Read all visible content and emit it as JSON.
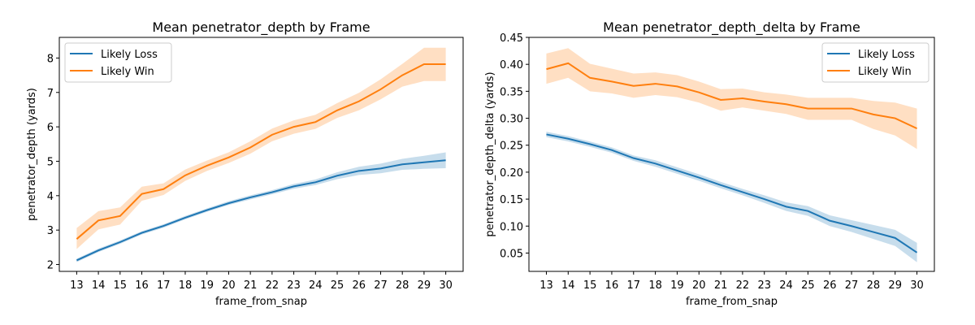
{
  "colors": {
    "loss": "#1f77b4",
    "win": "#ff7f0e"
  },
  "chart_data": [
    {
      "type": "line",
      "title": "Mean penetrator_depth by Frame",
      "xlabel": "frame_from_snap",
      "ylabel": "penetrator_depth (yards)",
      "x": [
        13,
        14,
        15,
        16,
        17,
        18,
        19,
        20,
        21,
        22,
        23,
        24,
        25,
        26,
        27,
        28,
        29,
        30
      ],
      "xlim": [
        12.2,
        30.8
      ],
      "ylim": [
        1.8,
        8.6
      ],
      "yticks": [
        2,
        3,
        4,
        5,
        6,
        7,
        8
      ],
      "legend_position": "upper-left",
      "series": [
        {
          "name": "Likely Loss",
          "color_key": "loss",
          "values": [
            2.12,
            2.41,
            2.65,
            2.92,
            3.12,
            3.36,
            3.58,
            3.78,
            3.95,
            4.1,
            4.27,
            4.39,
            4.58,
            4.72,
            4.79,
            4.91,
            4.97,
            5.03
          ],
          "lower": [
            2.07,
            2.36,
            2.6,
            2.87,
            3.07,
            3.31,
            3.53,
            3.73,
            3.89,
            4.04,
            4.2,
            4.31,
            4.48,
            4.6,
            4.65,
            4.75,
            4.78,
            4.8
          ],
          "upper": [
            2.17,
            2.46,
            2.7,
            2.97,
            3.17,
            3.41,
            3.63,
            3.84,
            4.01,
            4.16,
            4.34,
            4.47,
            4.68,
            4.84,
            4.93,
            5.07,
            5.16,
            5.26
          ]
        },
        {
          "name": "Likely Win",
          "color_key": "win",
          "values": [
            2.74,
            3.28,
            3.41,
            4.05,
            4.19,
            4.59,
            4.87,
            5.11,
            5.4,
            5.77,
            6.0,
            6.14,
            6.48,
            6.74,
            7.09,
            7.5,
            7.82,
            7.82
          ],
          "lower": [
            2.45,
            3.02,
            3.16,
            3.85,
            4.02,
            4.43,
            4.72,
            4.95,
            5.22,
            5.58,
            5.8,
            5.94,
            6.26,
            6.48,
            6.8,
            7.17,
            7.33,
            7.33
          ],
          "upper": [
            3.06,
            3.55,
            3.66,
            4.26,
            4.36,
            4.76,
            5.02,
            5.26,
            5.58,
            5.95,
            6.19,
            6.35,
            6.69,
            6.99,
            7.38,
            7.83,
            8.3,
            8.3
          ]
        }
      ]
    },
    {
      "type": "line",
      "title": "Mean penetrator_depth_delta by Frame",
      "xlabel": "frame_from_snap",
      "ylabel": "penetrator_depth_delta (yards)",
      "x": [
        13,
        14,
        15,
        16,
        17,
        18,
        19,
        20,
        21,
        22,
        23,
        24,
        25,
        26,
        27,
        28,
        29,
        30
      ],
      "xlim": [
        12.2,
        30.8
      ],
      "ylim": [
        0.016,
        0.45
      ],
      "yticks": [
        0.05,
        0.1,
        0.15,
        0.2,
        0.25,
        0.3,
        0.35,
        0.4,
        0.45
      ],
      "ytick_labels": [
        "0.05",
        "0.10",
        "0.15",
        "0.20",
        "0.25",
        "0.30",
        "0.35",
        "0.40",
        "0.45"
      ],
      "legend_position": "upper-right",
      "series": [
        {
          "name": "Likely Loss",
          "color_key": "loss",
          "values": [
            0.27,
            0.262,
            0.252,
            0.241,
            0.226,
            0.216,
            0.203,
            0.19,
            0.176,
            0.163,
            0.15,
            0.136,
            0.128,
            0.11,
            0.1,
            0.089,
            0.078,
            0.051
          ],
          "lower": [
            0.265,
            0.257,
            0.247,
            0.236,
            0.221,
            0.21,
            0.197,
            0.184,
            0.17,
            0.157,
            0.143,
            0.128,
            0.119,
            0.1,
            0.089,
            0.076,
            0.063,
            0.033
          ],
          "upper": [
            0.275,
            0.267,
            0.257,
            0.246,
            0.231,
            0.222,
            0.209,
            0.196,
            0.182,
            0.169,
            0.157,
            0.144,
            0.137,
            0.12,
            0.111,
            0.102,
            0.093,
            0.069
          ]
        },
        {
          "name": "Likely Win",
          "color_key": "win",
          "values": [
            0.391,
            0.402,
            0.375,
            0.368,
            0.36,
            0.364,
            0.359,
            0.348,
            0.334,
            0.337,
            0.331,
            0.326,
            0.318,
            0.318,
            0.318,
            0.307,
            0.3,
            0.281
          ],
          "lower": [
            0.364,
            0.375,
            0.35,
            0.346,
            0.338,
            0.343,
            0.339,
            0.329,
            0.314,
            0.32,
            0.314,
            0.308,
            0.297,
            0.297,
            0.297,
            0.28,
            0.268,
            0.243
          ],
          "upper": [
            0.42,
            0.43,
            0.401,
            0.392,
            0.383,
            0.385,
            0.38,
            0.368,
            0.354,
            0.355,
            0.348,
            0.344,
            0.338,
            0.338,
            0.338,
            0.332,
            0.329,
            0.318
          ]
        }
      ]
    }
  ]
}
